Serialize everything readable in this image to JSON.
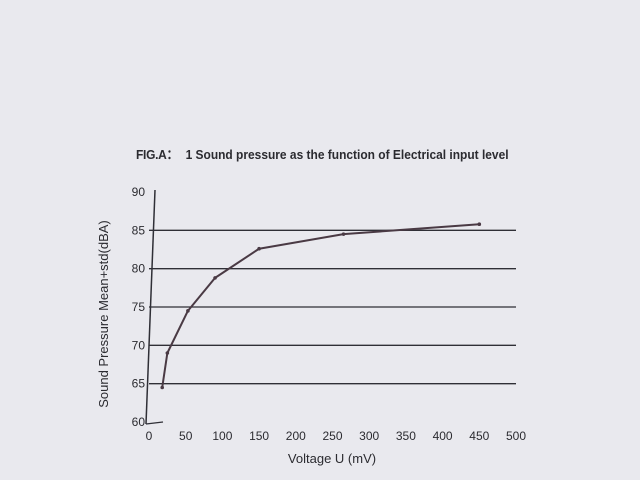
{
  "figure": {
    "prefix": "FIG.A：",
    "title": "1 Sound pressure as the function of Electrical input level"
  },
  "chart_data": {
    "type": "line",
    "title": "1 Sound pressure as the function of Electrical input level",
    "xlabel": "Voltage U (mV)",
    "ylabel": "Sound Pressure Mean+std(dBA)",
    "xlim": [
      0,
      500
    ],
    "ylim": [
      60,
      90
    ],
    "x_ticks": [
      0,
      50,
      100,
      150,
      200,
      250,
      300,
      350,
      400,
      450,
      500
    ],
    "x_tick_labels": [
      "0",
      "50",
      "100",
      "150",
      "200",
      "250",
      "300",
      "350",
      "400",
      "450",
      "500"
    ],
    "y_ticks": [
      60,
      65,
      70,
      75,
      80,
      85,
      90
    ],
    "y_tick_labels": [
      "60",
      "65",
      "70",
      "75",
      "80",
      "85",
      "90"
    ],
    "grid": "horizontal lines at 65, 70, 75, 80, 85",
    "series": [
      {
        "x": [
          18,
          25,
          53,
          90,
          150,
          265,
          450
        ],
        "y": [
          64.5,
          69,
          74.5,
          78.8,
          82.6,
          84.5,
          85.8
        ]
      }
    ],
    "colors": {
      "line": "#4a3a44",
      "grid": "#2f2f36",
      "axis": "#2f2f36"
    }
  }
}
